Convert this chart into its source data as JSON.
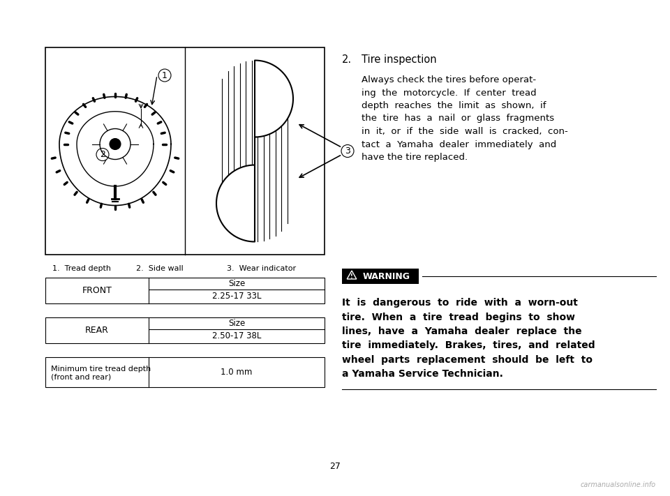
{
  "bg_color": "#ffffff",
  "page_number": "27",
  "section_number": "2.",
  "section_title": "Tire inspection",
  "paragraph_line1": "Always check the tires before operat-",
  "paragraph_line2": "ing  the  motorcycle.  If  center  tread",
  "paragraph_line3": "depth  reaches  the  limit  as  shown,  if",
  "paragraph_line4": "the  tire  has  a  nail  or  glass  fragments",
  "paragraph_line5": "in  it,  or  if  the  side  wall  is  cracked,  con-",
  "paragraph_line6": "tact  a  Yamaha  dealer  immediately  and",
  "paragraph_line7": "have the tire replaced.",
  "diagram_caption_1": "1.  Tread depth",
  "diagram_caption_2": "2.  Side wall",
  "diagram_caption_3": "3.  Wear indicator",
  "front_label": "FRONT",
  "front_size_header": "Size",
  "front_size_value": "2.25-17 33L",
  "rear_label": "REAR",
  "rear_size_header": "Size",
  "rear_size_value": "2.50-17 38L",
  "min_tread_label_1": "Minimum tire tread depth",
  "min_tread_label_2": "(front and rear)",
  "min_tread_value": "1.0 mm",
  "warning_label": "WARNING",
  "warning_text_1": "It  is  dangerous  to  ride  with  a  worn-out",
  "warning_text_2": "tire.  When  a  tire  tread  begins  to  show",
  "warning_text_3": "lines,  have  a  Yamaha  dealer  replace  the",
  "warning_text_4": "tire  immediately.  Brakes,  tires,  and  related",
  "warning_text_5": "wheel  parts  replacement  should  be  left  to",
  "warning_text_6": "a Yamaha Service Technician.",
  "watermark": "carmanualsonline.info"
}
